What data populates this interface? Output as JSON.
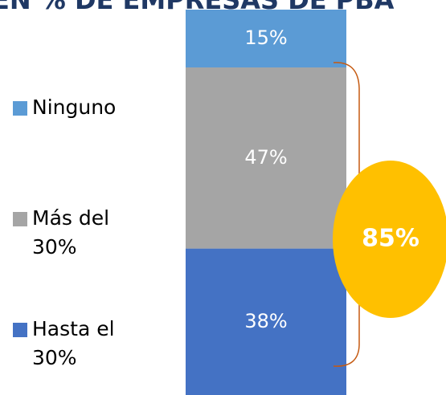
{
  "chart_data": {
    "type": "stacked-bar",
    "title": "EN % DE EMPRESAS DE PBA",
    "series": [
      {
        "name": "Hasta el 30%",
        "color": "#4472c4",
        "values": [
          38
        ],
        "value_labels": [
          "38%"
        ]
      },
      {
        "name": "Más del 30%",
        "color": "#a5a5a5",
        "values": [
          47
        ],
        "value_labels": [
          "47%"
        ]
      },
      {
        "name": "Ninguno",
        "color": "#5b9bd5",
        "values": [
          15
        ],
        "value_labels": [
          "15%"
        ]
      }
    ],
    "ylim": [
      0,
      100
    ],
    "annotation": "85%"
  }
}
